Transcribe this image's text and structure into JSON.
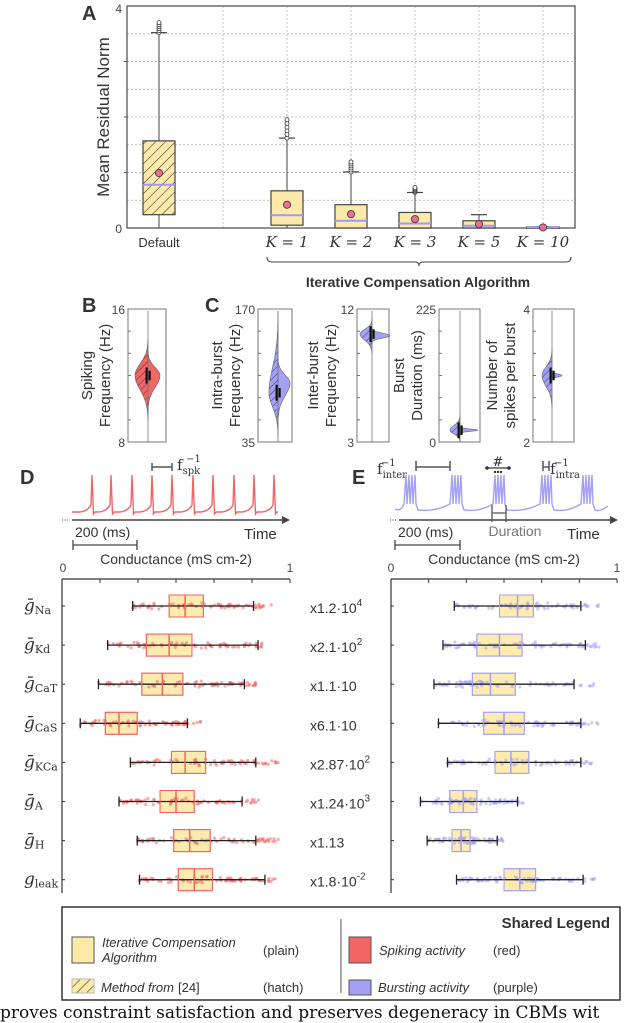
{
  "panel_labels": {
    "a": "A",
    "b": "B",
    "c": "C",
    "d": "D",
    "e": "E"
  },
  "colors": {
    "ica_fill": "#fde9a8",
    "spiking": "#f26565",
    "bursting": "#a3a0f6",
    "mean_marker": "#ef6b98",
    "median_line": "#9d9af6",
    "axis": "#444444"
  },
  "chart_data": [
    {
      "panel": "A",
      "type": "box",
      "ylabel": "Mean Residual Norm",
      "ylim": [
        0,
        4
      ],
      "ytick_labels": [
        "0",
        "4"
      ],
      "grid": true,
      "categories": [
        "Default",
        "K = 1",
        "K = 2",
        "K = 3",
        "K = 5",
        "K = 10"
      ],
      "group_label": "Iterative Compensation Algorithm",
      "boxes": [
        {
          "label": "Default",
          "style": "hatch",
          "whisker_low": 0,
          "q1": 0.24,
          "median": 0.78,
          "q3": 1.57,
          "whisker_high": 3.52,
          "mean": 0.99,
          "outlier_max": 3.7
        },
        {
          "label": "K = 1",
          "style": "plain",
          "whisker_low": 0,
          "q1": 0.05,
          "median": 0.23,
          "q3": 0.67,
          "whisker_high": 1.62,
          "mean": 0.42,
          "outlier_max": 1.95
        },
        {
          "label": "K = 2",
          "style": "plain",
          "whisker_low": 0,
          "q1": 0.0,
          "median": 0.13,
          "q3": 0.42,
          "whisker_high": 1.01,
          "mean": 0.25,
          "outlier_max": 1.19
        },
        {
          "label": "K = 3",
          "style": "plain",
          "whisker_low": 0,
          "q1": 0.0,
          "median": 0.08,
          "q3": 0.28,
          "whisker_high": 0.64,
          "mean": 0.16,
          "outlier_max": 0.73
        },
        {
          "label": "K = 5",
          "style": "plain",
          "whisker_low": 0,
          "q1": 0.0,
          "median": 0.04,
          "q3": 0.13,
          "whisker_high": 0.24,
          "mean": 0.07,
          "outlier_max": 0.24
        },
        {
          "label": "K = 10",
          "style": "plain",
          "whisker_low": 0,
          "q1": 0.0,
          "median": 0.01,
          "q3": 0.02,
          "whisker_high": 0.02,
          "mean": 0.01,
          "outlier_max": 0.02
        }
      ]
    },
    {
      "panel": "B",
      "type": "violin",
      "ylabel": [
        "Spiking",
        "Frequency (Hz)"
      ],
      "ylim": [
        8,
        16
      ],
      "ytick_labels": [
        "8",
        "16"
      ],
      "color": "spiking",
      "halves": [
        {
          "style": "hatch",
          "range": [
            9.3,
            14.2
          ],
          "mode": 12.0
        },
        {
          "style": "plain",
          "range": [
            9.8,
            13.5
          ],
          "mode": 12.0
        }
      ]
    },
    {
      "panel": "C",
      "type": "violin",
      "ylabel": [
        "Intra-burst",
        "Frequency (Hz)"
      ],
      "ylim": [
        35,
        170
      ],
      "ytick_labels": [
        "35",
        "170"
      ],
      "color": "bursting",
      "halves": [
        {
          "style": "hatch",
          "range": [
            40,
            165
          ],
          "mode": 85
        },
        {
          "style": "plain",
          "range": [
            55,
            120
          ],
          "mode": 95
        }
      ]
    },
    {
      "type": "violin",
      "ylabel": [
        "Inter-burst",
        "Frequency (Hz)"
      ],
      "ylim": [
        3,
        12
      ],
      "ytick_labels": [
        "3",
        "12"
      ],
      "color": "bursting",
      "halves": [
        {
          "style": "hatch",
          "range": [
            9.0,
            11.3
          ],
          "mode": 10.3
        },
        {
          "style": "plain",
          "range": [
            9.7,
            10.7
          ],
          "mode": 10.2
        }
      ]
    },
    {
      "type": "violin",
      "ylabel": [
        "Burst",
        "Duration (ms)"
      ],
      "ylim": [
        0,
        225
      ],
      "ytick_labels": [
        "0",
        "225"
      ],
      "color": "bursting",
      "halves": [
        {
          "style": "hatch",
          "range": [
            0,
            45
          ],
          "mode": 20
        },
        {
          "style": "plain",
          "range": [
            14,
            26
          ],
          "mode": 20
        }
      ]
    },
    {
      "type": "violin",
      "ylabel": [
        "Number of",
        "spikes per burst"
      ],
      "ylim": [
        2,
        4
      ],
      "ytick_labels": [
        "2",
        "4"
      ],
      "color": "bursting",
      "halves": [
        {
          "style": "hatch",
          "range": [
            2.5,
            3.4
          ],
          "mode": 3.0
        },
        {
          "style": "plain",
          "range": [
            2.93,
            3.07
          ],
          "mode": 3.0
        }
      ]
    },
    {
      "panel": "D",
      "type": "box",
      "orientation": "horizontal",
      "xlabel": "Conductance (mS cm-2)",
      "xlim": [
        0,
        1
      ],
      "xtick_labels": [
        "0",
        "1"
      ],
      "color": "spiking",
      "rows": [
        {
          "sym": "ḡ",
          "sub": "Na",
          "scale": "x1.2·10",
          "exp": "4",
          "whisker_low": 0.31,
          "q1": 0.47,
          "median": 0.54,
          "q3": 0.62,
          "whisker_high": 0.84,
          "outlier_max": 0.92
        },
        {
          "sym": "ḡ",
          "sub": "Kd",
          "scale": "x2.1·10",
          "exp": "2",
          "whisker_low": 0.2,
          "q1": 0.37,
          "median": 0.47,
          "q3": 0.57,
          "whisker_high": 0.86,
          "outlier_max": 0.88
        },
        {
          "sym": "ḡ",
          "sub": "CaT",
          "scale": "x1.1·10",
          "exp": "",
          "whisker_low": 0.16,
          "q1": 0.35,
          "median": 0.44,
          "q3": 0.53,
          "whisker_high": 0.8,
          "outlier_max": 0.88
        },
        {
          "sym": "ḡ",
          "sub": "CaS",
          "scale": "x6.1·10",
          "exp": "",
          "whisker_low": 0.08,
          "q1": 0.19,
          "median": 0.25,
          "q3": 0.33,
          "whisker_high": 0.55,
          "outlier_max": 0.61
        },
        {
          "sym": "ḡ",
          "sub": "KCa",
          "scale": "x2.87·10",
          "exp": "2",
          "whisker_low": 0.3,
          "q1": 0.48,
          "median": 0.54,
          "q3": 0.63,
          "whisker_high": 0.85,
          "outlier_max": 0.95
        },
        {
          "sym": "ḡ",
          "sub": "A",
          "scale": "x1.24·10",
          "exp": "3",
          "whisker_low": 0.25,
          "q1": 0.43,
          "median": 0.5,
          "q3": 0.58,
          "whisker_high": 0.79,
          "outlier_max": 0.88
        },
        {
          "sym": "ḡ",
          "sub": "H",
          "scale": "x1.13",
          "exp": "",
          "whisker_low": 0.33,
          "q1": 0.49,
          "median": 0.56,
          "q3": 0.65,
          "whisker_high": 0.85,
          "outlier_max": 0.96
        },
        {
          "sym": "g",
          "sub": "leak",
          "scale": "x1.8·10",
          "exp": "-2",
          "whisker_low": 0.34,
          "q1": 0.51,
          "median": 0.58,
          "q3": 0.66,
          "whisker_high": 0.89,
          "outlier_max": 0.94
        }
      ]
    },
    {
      "panel": "E",
      "type": "box",
      "orientation": "horizontal",
      "xlabel": "Conductance (mS cm-2)",
      "xlim": [
        0,
        1
      ],
      "xtick_labels": [
        "0",
        "1"
      ],
      "color": "bursting",
      "rows": [
        {
          "whisker_low": 0.28,
          "q1": 0.48,
          "median": 0.56,
          "q3": 0.63,
          "whisker_high": 0.84,
          "outlier_max": 0.93
        },
        {
          "whisker_low": 0.23,
          "q1": 0.38,
          "median": 0.48,
          "q3": 0.58,
          "whisker_high": 0.86,
          "outlier_max": 0.92
        },
        {
          "whisker_low": 0.19,
          "q1": 0.36,
          "median": 0.44,
          "q3": 0.55,
          "whisker_high": 0.81,
          "outlier_max": 0.91
        },
        {
          "whisker_low": 0.21,
          "q1": 0.41,
          "median": 0.5,
          "q3": 0.59,
          "whisker_high": 0.84,
          "outlier_max": 0.93
        },
        {
          "whisker_low": 0.25,
          "q1": 0.46,
          "median": 0.53,
          "q3": 0.61,
          "whisker_high": 0.84,
          "outlier_max": 0.89
        },
        {
          "whisker_low": 0.13,
          "q1": 0.26,
          "median": 0.32,
          "q3": 0.38,
          "whisker_high": 0.56,
          "outlier_max": 0.59
        },
        {
          "whisker_low": 0.16,
          "q1": 0.27,
          "median": 0.31,
          "q3": 0.35,
          "whisker_high": 0.47,
          "outlier_max": 0.5
        },
        {
          "whisker_low": 0.29,
          "q1": 0.5,
          "median": 0.57,
          "q3": 0.64,
          "whisker_high": 0.85,
          "outlier_max": 0.91
        }
      ]
    }
  ],
  "traces": {
    "spiking": {
      "period_label": "f",
      "period_sub": "spk",
      "period_sup": "−1",
      "scalebar": "200 (ms)",
      "time_label": "Time"
    },
    "bursting": {
      "inter_label": "f",
      "inter_sub": "inter",
      "inter_sup": "−1",
      "intra_label": "f",
      "intra_sub": "intra",
      "intra_sup": "−1",
      "count_symbol": "#",
      "duration_label": "Duration",
      "scalebar": "200 (ms)",
      "time_label": "Time"
    }
  },
  "legend": {
    "title": "Shared Legend",
    "items": [
      {
        "label": "Iterative Compensation",
        "label2": "Algorithm",
        "note": "(plain)"
      },
      {
        "label": "Method from",
        "ref": "[24]",
        "note": "(hatch)"
      },
      {
        "label": "Spiking activity",
        "note": "(red)"
      },
      {
        "label": "Bursting activity",
        "note": "(purple)"
      }
    ]
  },
  "caption": "proves constraint satisfaction and preserves degeneracy in CBMs wit"
}
